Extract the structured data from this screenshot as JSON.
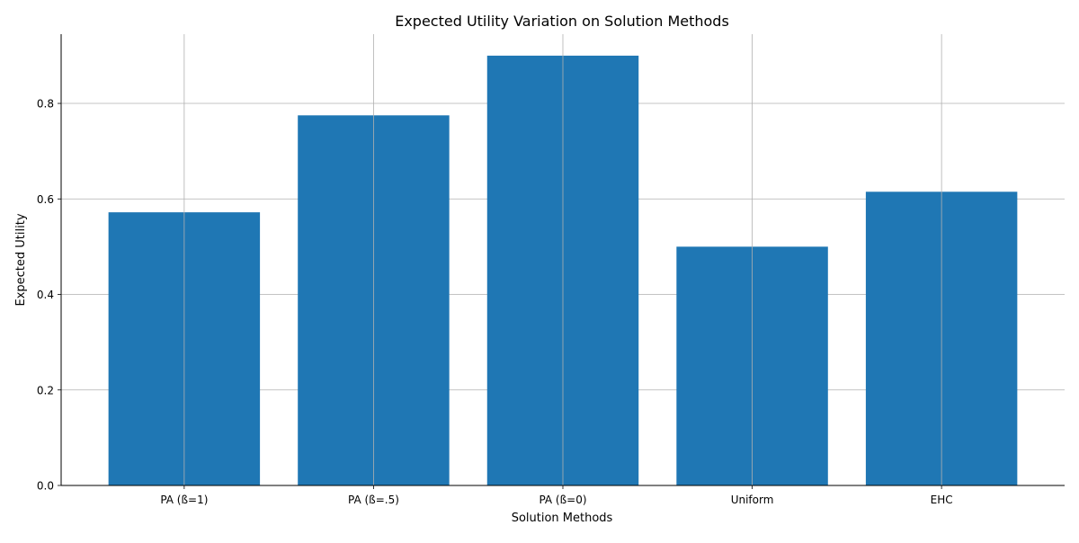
{
  "chart_data": {
    "type": "bar",
    "title": "Expected Utility Variation on Solution Methods",
    "xlabel": "Solution Methods",
    "ylabel": "Expected Utility",
    "categories": [
      "PA (ß=1)",
      "PA (ß=.5)",
      "PA (ß=0)",
      "Uniform",
      "EHC"
    ],
    "values": [
      0.572,
      0.775,
      0.9,
      0.5,
      0.615
    ],
    "ylim": [
      0,
      0.945
    ],
    "yticks": [
      "0.0",
      "0.2",
      "0.4",
      "0.6",
      "0.8"
    ],
    "grid": true,
    "bar_color": "#1f77b4",
    "grid_color": "#b0b0b0"
  }
}
